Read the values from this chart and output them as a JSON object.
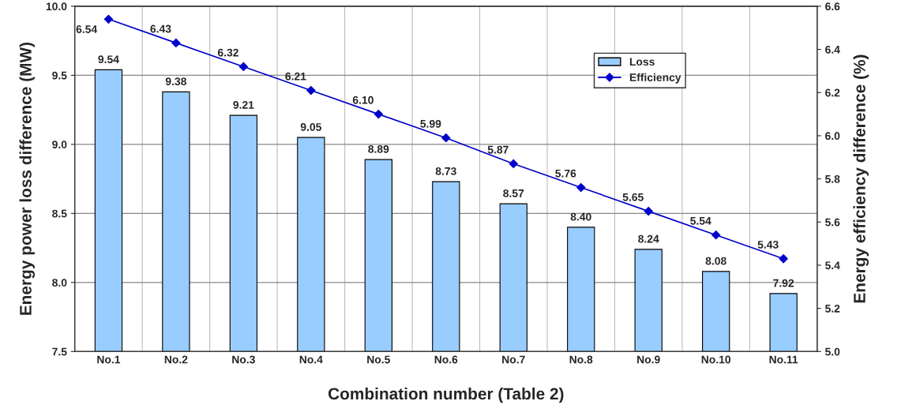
{
  "chart_data": {
    "type": "bar",
    "xlabel": "Combination number (Table 2)",
    "ylabel": "Energy power loss difference (MW)",
    "y2label": "Energy efficiency difference (%)",
    "categories": [
      "No.1",
      "No.2",
      "No.3",
      "No.4",
      "No.5",
      "No.6",
      "No.7",
      "No.8",
      "No.9",
      "No.10",
      "No.11"
    ],
    "series": [
      {
        "name": "Loss",
        "color": "#99ccff",
        "values": [
          9.54,
          9.38,
          9.21,
          9.05,
          8.89,
          8.73,
          8.57,
          8.4,
          8.24,
          8.08,
          7.92
        ],
        "value_labels": [
          "9.54",
          "9.38",
          "9.21",
          "9.05",
          "8.89",
          "8.73",
          "8.57",
          "8.40",
          "8.24",
          "8.08",
          "7.92"
        ]
      },
      {
        "name": "Efficiency",
        "type": "line",
        "axis": "y2",
        "color": "#0000cc",
        "marker": "diamond",
        "line_style": "solid",
        "values": [
          6.54,
          6.43,
          6.32,
          6.21,
          6.1,
          5.99,
          5.87,
          5.76,
          5.65,
          5.54,
          5.43
        ],
        "value_labels": [
          "6.54",
          "6.43",
          "6.32",
          "6.21",
          "6.10",
          "5.99",
          "5.87",
          "5.76",
          "5.65",
          "5.54",
          "5.43"
        ]
      }
    ],
    "ylim": [
      7.5,
      10.0
    ],
    "yticks": [
      7.5,
      {
        "value": 8.0,
        "label": "8.0"
      },
      8.5,
      {
        "value": 9.0,
        "label": "9.0"
      },
      9.5,
      {
        "value": 10.0,
        "label": "10.0"
      }
    ],
    "y2lim": [
      5.0,
      6.6
    ],
    "y2ticks": [
      {
        "value": 5.0,
        "label": "5.0"
      },
      5.2,
      5.4,
      5.6,
      5.8,
      {
        "value": 6.0,
        "label": "6.0"
      },
      6.2,
      6.4,
      6.6
    ],
    "grid": true,
    "legend": "top right"
  }
}
